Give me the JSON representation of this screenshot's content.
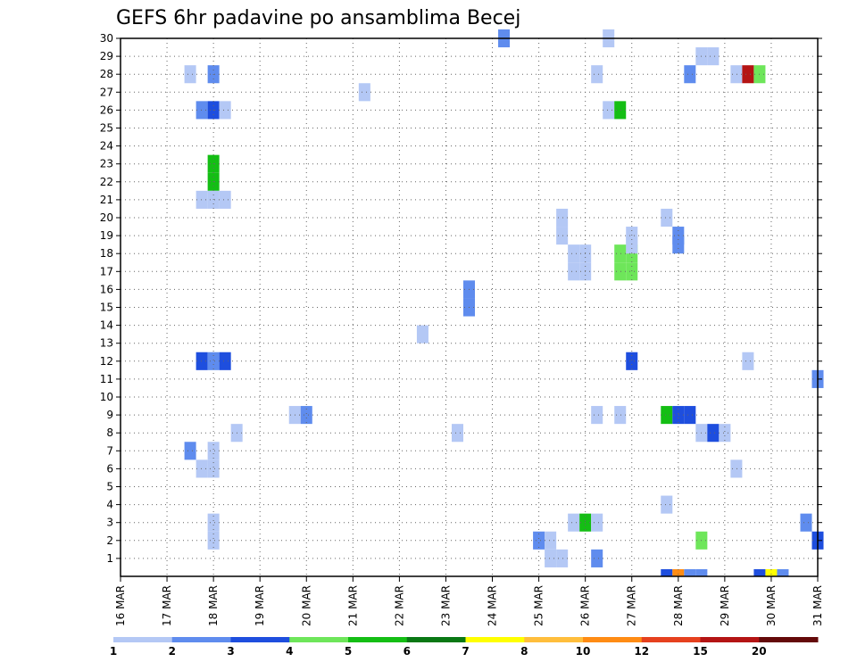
{
  "chart_data": {
    "type": "heatmap",
    "title": "GEFS 6hr padavine po ansamblima Becej",
    "x_tick_labels": [
      "16 MAR",
      "17 MAR",
      "18 MAR",
      "19 MAR",
      "20 MAR",
      "21 MAR",
      "22 MAR",
      "23 MAR",
      "24 MAR",
      "25 MAR",
      "26 MAR",
      "27 MAR",
      "28 MAR",
      "29 MAR",
      "30 MAR",
      "31 MAR"
    ],
    "x_range_days": [
      16,
      31
    ],
    "y_tick_labels": [
      "1",
      "2",
      "3",
      "4",
      "5",
      "6",
      "7",
      "8",
      "9",
      "10",
      "11",
      "12",
      "13",
      "14",
      "15",
      "16",
      "17",
      "18",
      "19",
      "20",
      "21",
      "22",
      "23",
      "24",
      "25",
      "26",
      "27",
      "28",
      "29",
      "30"
    ],
    "y_range": [
      0,
      30
    ],
    "grid": true,
    "legend": {
      "placement": "bottom",
      "labels": [
        "1",
        "2",
        "3",
        "4",
        "5",
        "6",
        "7",
        "8",
        "10",
        "12",
        "15",
        "20"
      ],
      "colors": [
        "#b4c8f5",
        "#5f8cee",
        "#1e4ede",
        "#6ee65a",
        "#14be14",
        "#0a7814",
        "#ffff00",
        "#ffbe3c",
        "#ff8c14",
        "#e6411e",
        "#b41414",
        "#640a0a"
      ]
    },
    "cells": [
      {
        "t": 24.25,
        "m": 30,
        "c": 2
      },
      {
        "t": 26.5,
        "m": 30,
        "c": 1
      },
      {
        "t": 28.5,
        "m": 29,
        "c": 1
      },
      {
        "t": 28.75,
        "m": 29,
        "c": 1
      },
      {
        "t": 17.5,
        "m": 28,
        "c": 1
      },
      {
        "t": 18.0,
        "m": 28,
        "c": 2
      },
      {
        "t": 26.25,
        "m": 28,
        "c": 1
      },
      {
        "t": 28.25,
        "m": 28,
        "c": 2
      },
      {
        "t": 29.25,
        "m": 28,
        "c": 1
      },
      {
        "t": 29.5,
        "m": 28,
        "c": 11
      },
      {
        "t": 29.75,
        "m": 28,
        "c": 4
      },
      {
        "t": 21.25,
        "m": 27,
        "c": 1
      },
      {
        "t": 17.75,
        "m": 26,
        "c": 2
      },
      {
        "t": 18.0,
        "m": 26,
        "c": 3
      },
      {
        "t": 18.25,
        "m": 26,
        "c": 1
      },
      {
        "t": 26.5,
        "m": 26,
        "c": 1
      },
      {
        "t": 26.75,
        "m": 26,
        "c": 5
      },
      {
        "t": 18.0,
        "m": 23,
        "c": 5
      },
      {
        "t": 18.0,
        "m": 22,
        "c": 5
      },
      {
        "t": 17.75,
        "m": 21,
        "c": 1
      },
      {
        "t": 18.0,
        "m": 21,
        "c": 1
      },
      {
        "t": 18.25,
        "m": 21,
        "c": 1
      },
      {
        "t": 25.5,
        "m": 20,
        "c": 1
      },
      {
        "t": 27.75,
        "m": 20,
        "c": 1
      },
      {
        "t": 25.5,
        "m": 19,
        "c": 1
      },
      {
        "t": 27.0,
        "m": 19,
        "c": 1
      },
      {
        "t": 28.0,
        "m": 19,
        "c": 2
      },
      {
        "t": 25.75,
        "m": 18,
        "c": 1
      },
      {
        "t": 26.0,
        "m": 18,
        "c": 1
      },
      {
        "t": 26.75,
        "m": 18,
        "c": 4
      },
      {
        "t": 27.0,
        "m": 18,
        "c": 4
      },
      {
        "t": 27.0,
        "m": 18.5,
        "c": 1
      },
      {
        "t": 28.0,
        "m": 18.5,
        "c": 2
      },
      {
        "t": 25.75,
        "m": 17,
        "c": 1
      },
      {
        "t": 26.0,
        "m": 17,
        "c": 1
      },
      {
        "t": 26.75,
        "m": 17,
        "c": 4
      },
      {
        "t": 27.0,
        "m": 17,
        "c": 4
      },
      {
        "t": 23.5,
        "m": 16,
        "c": 2
      },
      {
        "t": 23.5,
        "m": 15,
        "c": 2
      },
      {
        "t": 22.5,
        "m": 13.5,
        "c": 1
      },
      {
        "t": 17.75,
        "m": 12,
        "c": 3
      },
      {
        "t": 18.0,
        "m": 12,
        "c": 2
      },
      {
        "t": 18.25,
        "m": 12,
        "c": 3
      },
      {
        "t": 27.0,
        "m": 12,
        "c": 3
      },
      {
        "t": 29.5,
        "m": 12,
        "c": 1
      },
      {
        "t": 31.0,
        "m": 11,
        "c": 2
      },
      {
        "t": 19.75,
        "m": 9,
        "c": 1
      },
      {
        "t": 20.0,
        "m": 9,
        "c": 2
      },
      {
        "t": 26.25,
        "m": 9,
        "c": 1
      },
      {
        "t": 26.75,
        "m": 9,
        "c": 1
      },
      {
        "t": 27.75,
        "m": 9,
        "c": 5
      },
      {
        "t": 28.0,
        "m": 9,
        "c": 3
      },
      {
        "t": 28.25,
        "m": 9,
        "c": 3
      },
      {
        "t": 18.5,
        "m": 8,
        "c": 1
      },
      {
        "t": 23.25,
        "m": 8,
        "c": 1
      },
      {
        "t": 28.5,
        "m": 8,
        "c": 1
      },
      {
        "t": 28.75,
        "m": 8,
        "c": 3
      },
      {
        "t": 29.0,
        "m": 8,
        "c": 1
      },
      {
        "t": 17.5,
        "m": 7,
        "c": 2
      },
      {
        "t": 18.0,
        "m": 7,
        "c": 1
      },
      {
        "t": 17.75,
        "m": 6,
        "c": 1
      },
      {
        "t": 18.0,
        "m": 6,
        "c": 1
      },
      {
        "t": 29.25,
        "m": 6,
        "c": 1
      },
      {
        "t": 27.75,
        "m": 4,
        "c": 1
      },
      {
        "t": 18.0,
        "m": 3,
        "c": 1
      },
      {
        "t": 25.75,
        "m": 3,
        "c": 1
      },
      {
        "t": 26.0,
        "m": 3,
        "c": 5
      },
      {
        "t": 26.25,
        "m": 3,
        "c": 1
      },
      {
        "t": 30.75,
        "m": 3,
        "c": 2
      },
      {
        "t": 18.0,
        "m": 2,
        "c": 1
      },
      {
        "t": 25.0,
        "m": 2,
        "c": 2
      },
      {
        "t": 25.25,
        "m": 2,
        "c": 1
      },
      {
        "t": 28.5,
        "m": 2,
        "c": 4
      },
      {
        "t": 31.0,
        "m": 2,
        "c": 3
      },
      {
        "t": 25.25,
        "m": 1,
        "c": 1
      },
      {
        "t": 25.5,
        "m": 1,
        "c": 1
      },
      {
        "t": 26.25,
        "m": 1,
        "c": 2
      },
      {
        "t": 27.75,
        "m": 0,
        "c": 3
      },
      {
        "t": 28.0,
        "m": 0,
        "c": 9
      },
      {
        "t": 28.25,
        "m": 0,
        "c": 2
      },
      {
        "t": 28.5,
        "m": 0,
        "c": 2
      },
      {
        "t": 29.75,
        "m": 0,
        "c": 3
      },
      {
        "t": 30.0,
        "m": 0,
        "c": 7
      },
      {
        "t": 30.25,
        "m": 0,
        "c": 2
      }
    ]
  }
}
